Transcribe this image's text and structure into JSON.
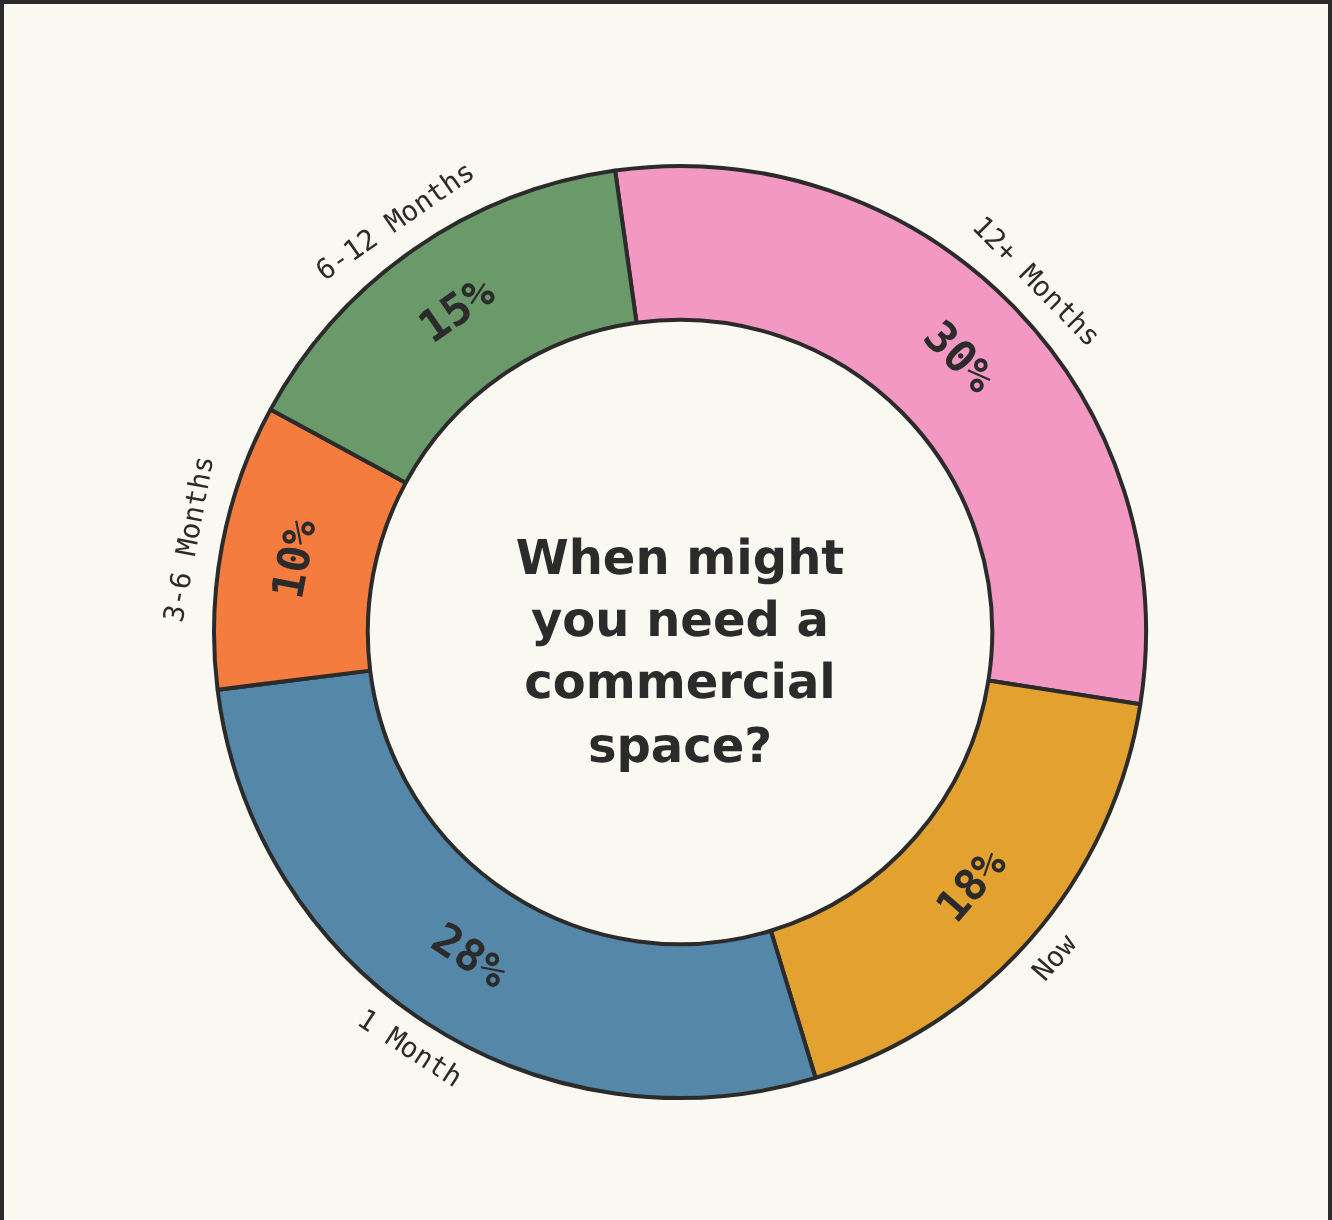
{
  "chart_data": {
    "type": "donut",
    "title": "When might you need a commercial space?",
    "categories": [
      "12+ Months",
      "Now",
      "1 Month",
      "3-6 Months",
      "6-12 Months"
    ],
    "values": [
      30,
      18,
      28,
      10,
      15
    ],
    "colors": [
      "#f398c3",
      "#e3a22f",
      "#5587a8",
      "#f47c3f",
      "#6a9a6a"
    ],
    "value_labels": [
      "30%",
      "18%",
      "28%",
      "10%",
      "15%"
    ],
    "legend": false
  }
}
